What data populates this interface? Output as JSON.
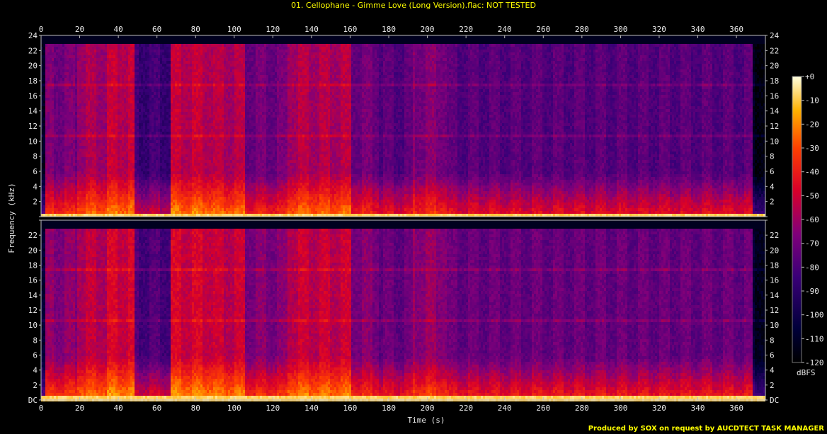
{
  "window_title": "01. Cellophane - Gimme Love (Long Version).flac: NOT TESTED",
  "footer": "Produced by SOX on request by AUCDTECT TASK MANAGER",
  "colors": {
    "background": "#000000",
    "title": "#ffff00",
    "axis": "#bdbdbd",
    "spectrum_low": "#000018",
    "spectrum_mid": "#c8003c",
    "spectrum_high": "#ffffc8"
  },
  "chart_data": {
    "type": "heatmap",
    "xlabel": "Time (s)",
    "ylabel": "Frequency (kHz)",
    "x_range": [
      0,
      375
    ],
    "x_ticks": [
      0,
      20,
      40,
      60,
      80,
      100,
      120,
      140,
      160,
      180,
      200,
      220,
      240,
      260,
      280,
      300,
      320,
      340,
      360
    ],
    "y_range_khz": [
      0,
      24
    ],
    "y_ticks": [
      "DC",
      "2",
      "4",
      "6",
      "8",
      "10",
      "12",
      "14",
      "16",
      "18",
      "20",
      "22",
      "24"
    ],
    "channels": 2,
    "colorbar": {
      "unit": "dBFS",
      "ticks": [
        "+0",
        "-10",
        "-20",
        "-30",
        "-40",
        "-50",
        "-60",
        "-70",
        "-80",
        "-90",
        "-100",
        "-110",
        "-120"
      ],
      "range_db": [
        -120,
        0
      ]
    },
    "segments": [
      {
        "t": [
          0,
          2
        ],
        "level": -115
      },
      {
        "t": [
          2,
          18
        ],
        "level": -70
      },
      {
        "t": [
          18,
          33
        ],
        "level": -60
      },
      {
        "t": [
          33,
          48
        ],
        "level": -55
      },
      {
        "t": [
          48,
          67
        ],
        "level": -85
      },
      {
        "t": [
          67,
          88
        ],
        "level": -55
      },
      {
        "t": [
          88,
          105
        ],
        "level": -58
      },
      {
        "t": [
          105,
          127
        ],
        "level": -72
      },
      {
        "t": [
          127,
          160
        ],
        "level": -58
      },
      {
        "t": [
          160,
          174
        ],
        "level": -72
      },
      {
        "t": [
          174,
          192
        ],
        "level": -78
      },
      {
        "t": [
          192,
          210
        ],
        "level": -68
      },
      {
        "t": [
          210,
          368
        ],
        "level": -78
      },
      {
        "t": [
          368,
          375
        ],
        "level": -115
      }
    ],
    "rolloff_khz": 23.2
  }
}
